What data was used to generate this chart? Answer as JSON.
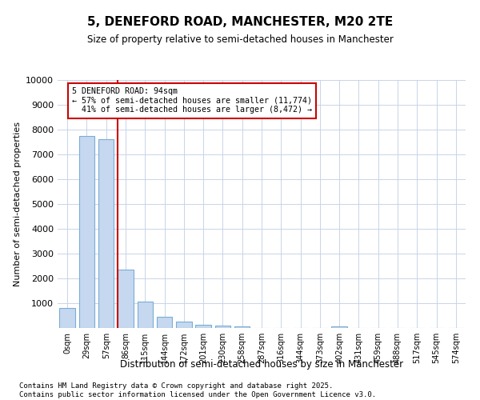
{
  "title": "5, DENEFORD ROAD, MANCHESTER, M20 2TE",
  "subtitle": "Size of property relative to semi-detached houses in Manchester",
  "xlabel": "Distribution of semi-detached houses by size in Manchester",
  "ylabel": "Number of semi-detached properties",
  "bar_labels": [
    "0sqm",
    "29sqm",
    "57sqm",
    "86sqm",
    "115sqm",
    "144sqm",
    "172sqm",
    "201sqm",
    "230sqm",
    "258sqm",
    "287sqm",
    "316sqm",
    "344sqm",
    "373sqm",
    "402sqm",
    "431sqm",
    "459sqm",
    "488sqm",
    "517sqm",
    "545sqm",
    "574sqm"
  ],
  "bar_values": [
    800,
    7750,
    7600,
    2350,
    1050,
    450,
    270,
    130,
    90,
    70,
    0,
    0,
    0,
    0,
    50,
    0,
    0,
    0,
    0,
    0,
    0
  ],
  "property_line_x": 2.6,
  "property_size": "94sqm",
  "pct_smaller": 57,
  "n_smaller": 11774,
  "pct_larger": 41,
  "n_larger": 8472,
  "bar_color": "#c5d8f0",
  "bar_edge_color": "#7aadd4",
  "line_color": "#cc0000",
  "annotation_box_color": "#cc0000",
  "background_color": "#ffffff",
  "grid_color": "#c8d4e8",
  "footer_line1": "Contains HM Land Registry data © Crown copyright and database right 2025.",
  "footer_line2": "Contains public sector information licensed under the Open Government Licence v3.0.",
  "ylim": [
    0,
    10000
  ],
  "yticks": [
    0,
    1000,
    2000,
    3000,
    4000,
    5000,
    6000,
    7000,
    8000,
    9000,
    10000
  ]
}
